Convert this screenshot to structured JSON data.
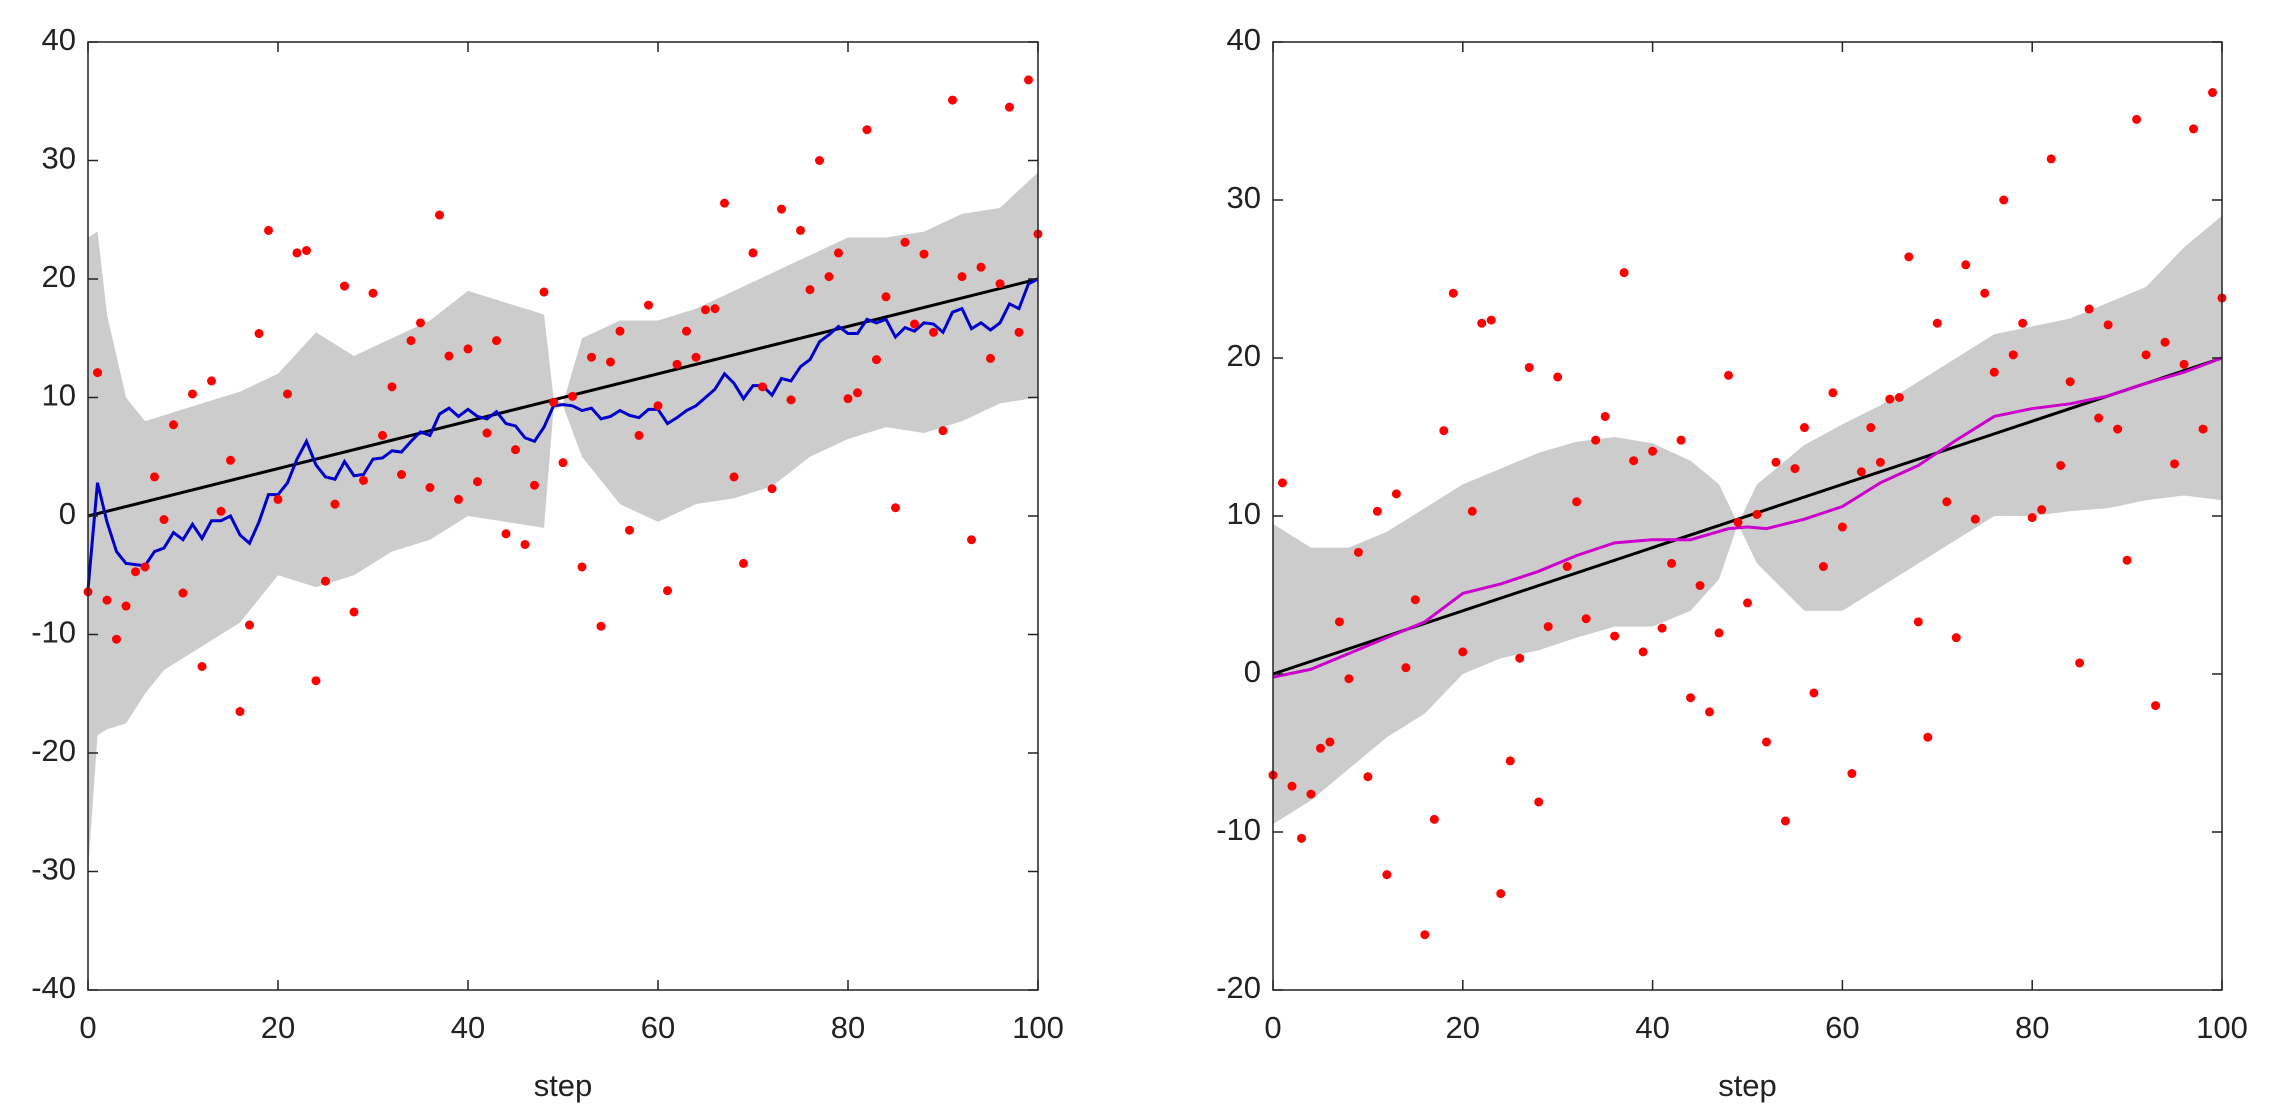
{
  "chart_data": [
    {
      "type": "line",
      "xlabel": "step",
      "xlim": [
        0,
        100
      ],
      "ylim": [
        -40,
        40
      ],
      "xticks": [
        0,
        20,
        40,
        60,
        80,
        100
      ],
      "yticks": [
        -40,
        -30,
        -20,
        -10,
        0,
        10,
        20,
        30,
        40
      ],
      "series": [
        {
          "kind": "band",
          "color": "#cccccc",
          "x": [
            0,
            1,
            2,
            4,
            6,
            8,
            12,
            16,
            20,
            24,
            28,
            32,
            36,
            40,
            44,
            48,
            49,
            50,
            52,
            56,
            60,
            64,
            68,
            72,
            76,
            80,
            84,
            88,
            92,
            96,
            100
          ],
          "upper": [
            23.5,
            24,
            17,
            10,
            8,
            8.5,
            9.5,
            10.5,
            12,
            15.5,
            13.5,
            15,
            16.5,
            19,
            18,
            17,
            10,
            9.5,
            15,
            16.5,
            16.5,
            17.5,
            19,
            20.5,
            22,
            23.5,
            23.5,
            24,
            25.5,
            26,
            29
          ],
          "lower": [
            -30,
            -18.5,
            -18,
            -17.5,
            -15,
            -13,
            -11,
            -9,
            -5,
            -6,
            -5,
            -3,
            -2,
            0,
            -0.5,
            -1,
            9,
            9.3,
            5,
            1,
            -0.5,
            1,
            1.5,
            2.5,
            5,
            6.5,
            7.5,
            7,
            8,
            9.5,
            10
          ]
        },
        {
          "kind": "line",
          "color": "#000000",
          "x": [
            0,
            100
          ],
          "values": [
            0,
            20
          ]
        },
        {
          "kind": "line",
          "color": "#0000cc",
          "x": [
            0,
            1,
            2,
            3,
            4,
            5,
            6,
            7,
            8,
            9,
            10,
            11,
            12,
            13,
            14,
            15,
            16,
            17,
            18,
            19,
            20,
            21,
            22,
            23,
            24,
            25,
            26,
            27,
            28,
            29,
            30,
            31,
            32,
            33,
            34,
            35,
            36,
            37,
            38,
            39,
            40,
            41,
            42,
            43,
            44,
            45,
            46,
            47,
            48,
            49,
            50,
            51,
            52,
            53,
            54,
            55,
            56,
            57,
            58,
            59,
            60,
            61,
            62,
            63,
            64,
            65,
            66,
            67,
            68,
            69,
            70,
            71,
            72,
            73,
            74,
            75,
            76,
            77,
            78,
            79,
            80,
            81,
            82,
            83,
            84,
            85,
            86,
            87,
            88,
            89,
            90,
            91,
            92,
            93,
            94,
            95,
            96,
            97,
            98,
            99,
            100
          ],
          "values": [
            -6.2,
            2.8,
            -0.5,
            -3.0,
            -4.0,
            -4.1,
            -4.2,
            -3.0,
            -2.7,
            -1.4,
            -2.0,
            -0.7,
            -1.9,
            -0.4,
            -0.4,
            0.0,
            -1.6,
            -2.3,
            -0.5,
            1.8,
            1.8,
            2.8,
            4.8,
            6.3,
            4.3,
            3.3,
            3.1,
            4.6,
            3.4,
            3.5,
            4.8,
            4.9,
            5.5,
            5.4,
            6.3,
            7.1,
            6.8,
            8.6,
            9.1,
            8.4,
            9.0,
            8.4,
            8.2,
            8.8,
            7.8,
            7.6,
            6.6,
            6.3,
            7.5,
            9.3,
            9.4,
            9.3,
            8.9,
            9.1,
            8.2,
            8.4,
            8.9,
            8.5,
            8.3,
            9.0,
            9.0,
            7.8,
            8.3,
            8.9,
            9.3,
            10.0,
            10.7,
            12.0,
            11.2,
            9.9,
            11.0,
            11.0,
            10.2,
            11.6,
            11.4,
            12.6,
            13.2,
            14.7,
            15.3,
            16.0,
            15.4,
            15.4,
            16.6,
            16.3,
            16.6,
            15.1,
            15.9,
            15.6,
            16.3,
            16.2,
            15.5,
            17.2,
            17.5,
            15.8,
            16.3,
            15.7,
            16.3,
            17.9,
            17.5,
            19.6,
            20.0
          ]
        },
        {
          "kind": "points",
          "color": "#ff0000",
          "x": [
            0,
            1,
            2,
            3,
            4,
            5,
            6,
            7,
            8,
            9,
            10,
            11,
            12,
            13,
            14,
            15,
            16,
            17,
            18,
            19,
            20,
            21,
            22,
            23,
            24,
            25,
            26,
            27,
            28,
            29,
            30,
            31,
            32,
            33,
            34,
            35,
            36,
            37,
            38,
            39,
            40,
            41,
            42,
            43,
            44,
            45,
            46,
            47,
            48,
            49,
            50,
            51,
            52,
            53,
            54,
            55,
            56,
            57,
            58,
            59,
            60,
            61,
            62,
            63,
            64,
            65,
            66,
            67,
            68,
            69,
            70,
            71,
            72,
            73,
            74,
            75,
            76,
            77,
            78,
            79,
            80,
            81,
            82,
            83,
            84,
            85,
            86,
            87,
            88,
            89,
            90,
            91,
            92,
            93,
            94,
            95,
            96,
            97,
            98,
            99,
            100
          ],
          "values": [
            -6.4,
            12.1,
            -7.1,
            -10.4,
            -7.6,
            -4.7,
            -4.3,
            3.3,
            -0.3,
            7.7,
            -6.5,
            10.3,
            -12.7,
            11.4,
            0.4,
            4.7,
            -16.5,
            -9.2,
            15.4,
            24.1,
            1.4,
            10.3,
            22.2,
            22.4,
            -13.9,
            -5.5,
            1.0,
            19.4,
            -8.1,
            3.0,
            18.8,
            6.8,
            10.9,
            3.5,
            14.8,
            16.3,
            2.4,
            25.4,
            13.5,
            1.4,
            14.1,
            2.9,
            7.0,
            14.8,
            -1.5,
            5.6,
            -2.4,
            2.6,
            18.9,
            9.6,
            4.5,
            10.1,
            -4.3,
            13.4,
            -9.3,
            13.0,
            15.6,
            -1.2,
            6.8,
            17.8,
            9.3,
            -6.3,
            12.8,
            15.6,
            13.4,
            17.4,
            17.5,
            26.4,
            3.3,
            -4.0,
            22.2,
            10.9,
            2.3,
            25.9,
            9.8,
            24.1,
            19.1,
            30.0,
            20.2,
            22.2,
            9.9,
            10.4,
            32.6,
            13.2,
            18.5,
            0.7,
            23.1,
            16.2,
            22.1,
            15.5,
            7.2,
            35.1,
            20.2,
            -2.0,
            21.0,
            13.3,
            19.6,
            34.5,
            15.5,
            36.8,
            23.8
          ]
        }
      ]
    },
    {
      "type": "line",
      "xlabel": "step",
      "xlim": [
        0,
        100
      ],
      "ylim": [
        -20,
        40
      ],
      "xticks": [
        0,
        20,
        40,
        60,
        80,
        100
      ],
      "yticks": [
        -20,
        -10,
        0,
        10,
        20,
        30,
        40
      ],
      "series": [
        {
          "kind": "band",
          "color": "#cccccc",
          "x": [
            0,
            4,
            8,
            12,
            16,
            20,
            24,
            28,
            32,
            36,
            40,
            44,
            47,
            49,
            51,
            56,
            60,
            64,
            68,
            72,
            76,
            80,
            84,
            88,
            92,
            96,
            100
          ],
          "upper": [
            9.5,
            8,
            8,
            9,
            10.5,
            12,
            13,
            14,
            14.7,
            15,
            14.6,
            13.5,
            12,
            9.5,
            12,
            14.5,
            15.8,
            17,
            18.5,
            20,
            21.5,
            22,
            22.5,
            23.5,
            24.5,
            27,
            29
          ],
          "lower": [
            -9.5,
            -8,
            -6,
            -4,
            -2.5,
            0,
            1,
            1.5,
            2.3,
            3,
            3,
            4,
            6,
            9.5,
            7,
            4,
            4,
            5.5,
            7,
            8.5,
            10,
            10,
            10.3,
            10.5,
            11,
            11.3,
            11
          ]
        },
        {
          "kind": "line",
          "color": "#000000",
          "x": [
            0,
            100
          ],
          "values": [
            0,
            20
          ]
        },
        {
          "kind": "line",
          "color": "#cc00cc",
          "x": [
            0,
            4,
            8,
            12,
            16,
            20,
            24,
            28,
            32,
            36,
            40,
            44,
            48,
            50,
            52,
            56,
            60,
            64,
            68,
            72,
            76,
            80,
            84,
            88,
            92,
            96,
            100
          ],
          "values": [
            -0.2,
            0.3,
            1.3,
            2.3,
            3.3,
            5.1,
            5.7,
            6.5,
            7.5,
            8.3,
            8.5,
            8.5,
            9.2,
            9.3,
            9.2,
            9.8,
            10.6,
            12.1,
            13.2,
            14.8,
            16.3,
            16.8,
            17.1,
            17.6,
            18.4,
            19.1,
            20.0
          ]
        },
        {
          "kind": "points",
          "color": "#ff0000",
          "x": [
            0,
            1,
            2,
            3,
            4,
            5,
            6,
            7,
            8,
            9,
            10,
            11,
            12,
            13,
            14,
            15,
            16,
            17,
            18,
            19,
            20,
            21,
            22,
            23,
            24,
            25,
            26,
            27,
            28,
            29,
            30,
            31,
            32,
            33,
            34,
            35,
            36,
            37,
            38,
            39,
            40,
            41,
            42,
            43,
            44,
            45,
            46,
            47,
            48,
            49,
            50,
            51,
            52,
            53,
            54,
            55,
            56,
            57,
            58,
            59,
            60,
            61,
            62,
            63,
            64,
            65,
            66,
            67,
            68,
            69,
            70,
            71,
            72,
            73,
            74,
            75,
            76,
            77,
            78,
            79,
            80,
            81,
            82,
            83,
            84,
            85,
            86,
            87,
            88,
            89,
            90,
            91,
            92,
            93,
            94,
            95,
            96,
            97,
            98,
            99,
            100
          ],
          "values": [
            -6.4,
            12.1,
            -7.1,
            -10.4,
            -7.6,
            -4.7,
            -4.3,
            3.3,
            -0.3,
            7.7,
            -6.5,
            10.3,
            -12.7,
            11.4,
            0.4,
            4.7,
            -16.5,
            -9.2,
            15.4,
            24.1,
            1.4,
            10.3,
            22.2,
            22.4,
            -13.9,
            -5.5,
            1.0,
            19.4,
            -8.1,
            3.0,
            18.8,
            6.8,
            10.9,
            3.5,
            14.8,
            16.3,
            2.4,
            25.4,
            13.5,
            1.4,
            14.1,
            2.9,
            7.0,
            14.8,
            -1.5,
            5.6,
            -2.4,
            2.6,
            18.9,
            9.6,
            4.5,
            10.1,
            -4.3,
            13.4,
            -9.3,
            13.0,
            15.6,
            -1.2,
            6.8,
            17.8,
            9.3,
            -6.3,
            12.8,
            15.6,
            13.4,
            17.4,
            17.5,
            26.4,
            3.3,
            -4.0,
            22.2,
            10.9,
            2.3,
            25.9,
            9.8,
            24.1,
            19.1,
            30.0,
            20.2,
            22.2,
            9.9,
            10.4,
            32.6,
            13.2,
            18.5,
            0.7,
            23.1,
            16.2,
            22.1,
            15.5,
            7.2,
            35.1,
            20.2,
            -2.0,
            21.0,
            13.3,
            19.6,
            34.5,
            15.5,
            36.8,
            23.8
          ]
        }
      ]
    }
  ]
}
